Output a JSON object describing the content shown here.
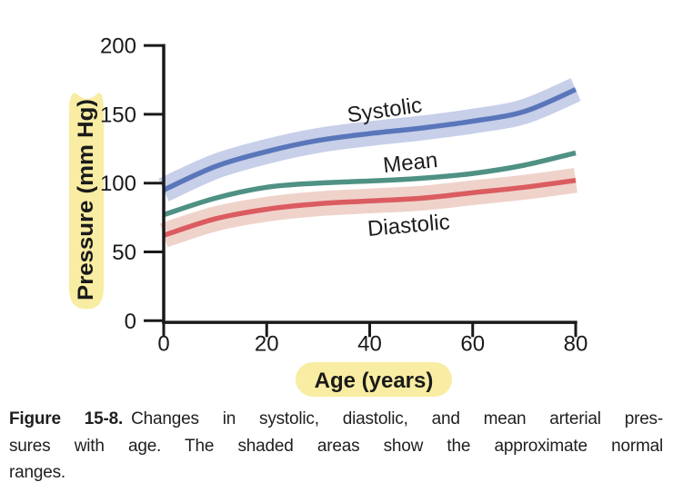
{
  "figure": {
    "caption_label": "Figure 15-8.",
    "caption_line1_rest": "Changes in systolic, diastolic, and mean arterial pres-",
    "caption_line2": "sures with age. The shaded areas show the approximate normal",
    "caption_line3": "ranges."
  },
  "chart_data": {
    "type": "line",
    "title": "",
    "xlabel": "Age (years)",
    "ylabel": "Pressure (mm Hg)",
    "xlim": [
      0,
      80
    ],
    "ylim": [
      0,
      200
    ],
    "x_ticks": [
      0,
      20,
      40,
      60,
      80
    ],
    "y_ticks": [
      0,
      50,
      100,
      150,
      200
    ],
    "grid": false,
    "legend": "inline-labels",
    "x": [
      0,
      10,
      20,
      30,
      40,
      50,
      60,
      70,
      80
    ],
    "series": [
      {
        "name": "Systolic",
        "values": [
          95,
          112,
          123,
          131,
          136,
          140,
          145,
          152,
          168
        ],
        "color": "#5a76ba",
        "band_color": "#c7cfe9",
        "band_halfwidth_mmhg": 9
      },
      {
        "name": "Mean",
        "values": [
          77,
          89,
          97,
          100,
          101.5,
          103.5,
          107,
          113,
          122
        ],
        "color": "#4f9184",
        "band_color": null,
        "band_halfwidth_mmhg": 0
      },
      {
        "name": "Diastolic",
        "values": [
          62,
          74,
          81,
          85,
          87,
          89,
          93,
          97,
          102
        ],
        "color": "#db5c60",
        "band_color": "#efd3cb",
        "band_halfwidth_mmhg": 9
      }
    ],
    "annotations": [
      "Systolic",
      "Mean",
      "Diastolic"
    ],
    "axis_color": "#1a1a1a",
    "highlight_color": "#f8eda2"
  }
}
